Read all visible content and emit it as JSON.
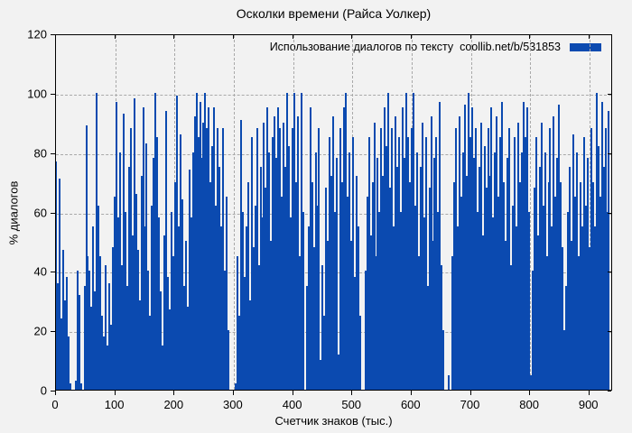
{
  "page": {
    "background": "#f2f2f2"
  },
  "chart_data": {
    "type": "bar",
    "title": "Осколки времени (Райса Уолкер)",
    "legend": {
      "label": "Использование диалогов по тексту  coollib.net/b/531853",
      "position": "top-right-inside",
      "swatch_color": "#0b4ab0"
    },
    "xlabel": "Счетчик знаков (тыс.)",
    "ylabel": "% диалогов",
    "xlim": [
      0,
      940
    ],
    "ylim": [
      0,
      120
    ],
    "xticks": [
      0,
      100,
      200,
      300,
      400,
      500,
      600,
      700,
      800,
      900
    ],
    "yticks": [
      0,
      20,
      40,
      60,
      80,
      100,
      120
    ],
    "grid": true,
    "grid_style": "dashed",
    "grid_color": "#a9a9a9",
    "bar_color": "#0b4ab0",
    "series_x_start": 0,
    "series_x_step": 3,
    "values": [
      77,
      36,
      71,
      24,
      47,
      30,
      38,
      18,
      2,
      0,
      0,
      3,
      40,
      32,
      2,
      0,
      35,
      89,
      45,
      40,
      28,
      55,
      33,
      100,
      62,
      45,
      25,
      18,
      42,
      15,
      36,
      22,
      48,
      65,
      97,
      58,
      80,
      42,
      93,
      60,
      35,
      75,
      88,
      52,
      98,
      66,
      47,
      30,
      72,
      95,
      55,
      83,
      40,
      25,
      62,
      78,
      100,
      85,
      58,
      33,
      15,
      52,
      94,
      38,
      27,
      60,
      45,
      70,
      99,
      55,
      86,
      64,
      35,
      50,
      28,
      74,
      58,
      80,
      92,
      100,
      85,
      97,
      78,
      90,
      100,
      88,
      95,
      70,
      82,
      95,
      62,
      88,
      75,
      55,
      88,
      40,
      65,
      20,
      0,
      0,
      0,
      2,
      45,
      25,
      91,
      60,
      38,
      55,
      70,
      30,
      85,
      48,
      62,
      88,
      42,
      75,
      58,
      90,
      68,
      95,
      80,
      50,
      85,
      92,
      78,
      95,
      88,
      65,
      90,
      75,
      100,
      82,
      58,
      88,
      100,
      70,
      92,
      45,
      100,
      60,
      0,
      35,
      55,
      95,
      70,
      48,
      80,
      62,
      88,
      10,
      42,
      25,
      68,
      50,
      85,
      72,
      92,
      60,
      78,
      12,
      88,
      70,
      95,
      100,
      65,
      80,
      50,
      85,
      38,
      72,
      55,
      25,
      0,
      0,
      40,
      65,
      85,
      52,
      70,
      90,
      45,
      78,
      60,
      88,
      72,
      95,
      82,
      100,
      68,
      88,
      55,
      92,
      75,
      85,
      60,
      95,
      78,
      100,
      85,
      70,
      88,
      100,
      62,
      80,
      45,
      75,
      90,
      58,
      85,
      35,
      68,
      92,
      50,
      78,
      85,
      60,
      97,
      42,
      20,
      0,
      0,
      5,
      0,
      45,
      70,
      88,
      55,
      92,
      65,
      80,
      96,
      72,
      100,
      85,
      95,
      78,
      88,
      60,
      75,
      90,
      52,
      82,
      68,
      88,
      72,
      95,
      58,
      80,
      92,
      65,
      85,
      97,
      70,
      50,
      78,
      88,
      42,
      62,
      85,
      55,
      90,
      70,
      80,
      97,
      85,
      95,
      60,
      5,
      40,
      68,
      85,
      52,
      75,
      90,
      62,
      80,
      45,
      70,
      88,
      55,
      92,
      65,
      78,
      96,
      70,
      48,
      20,
      35,
      60,
      75,
      50,
      86,
      65,
      80,
      45,
      70,
      55,
      85,
      62,
      78,
      48,
      88,
      70,
      55,
      100,
      82,
      65,
      97,
      75,
      88,
      60,
      94
    ]
  }
}
